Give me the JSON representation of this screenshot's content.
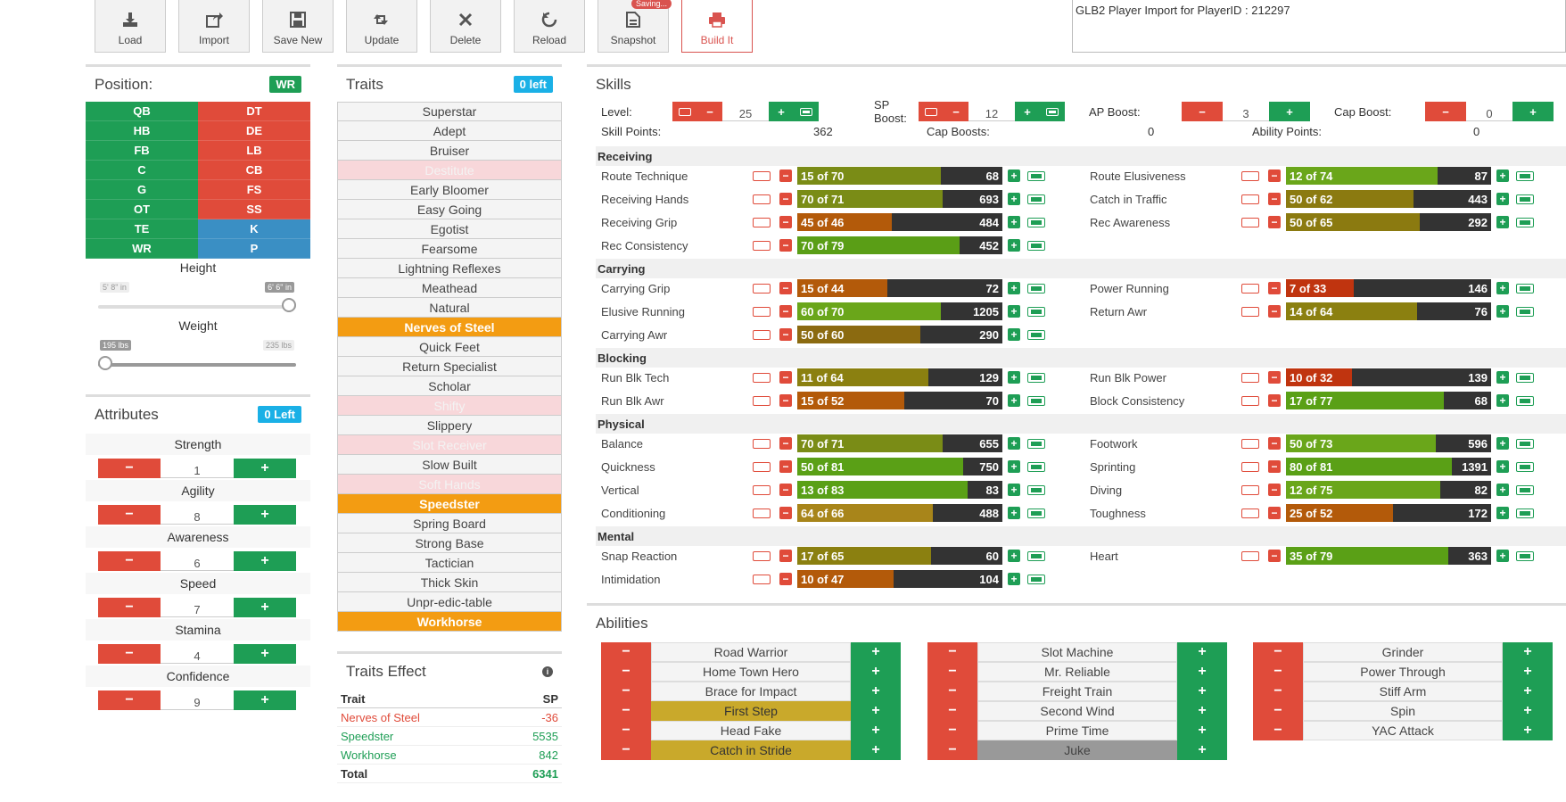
{
  "toolbar": {
    "buttons": [
      {
        "label": "Load",
        "icon": "download-icon"
      },
      {
        "label": "Import",
        "icon": "share-icon"
      },
      {
        "label": "Save New",
        "icon": "save-icon"
      },
      {
        "label": "Update",
        "icon": "retweet-icon"
      },
      {
        "label": "Delete",
        "icon": "close-icon"
      },
      {
        "label": "Reload",
        "icon": "reload-icon"
      },
      {
        "label": "Snapshot",
        "icon": "file-icon"
      },
      {
        "label": "Build It",
        "icon": "print-icon"
      }
    ],
    "saving_badge": "Saving..."
  },
  "import_text": "GLB2 Player Import for PlayerID : 212297",
  "position": {
    "title": "Position:",
    "selected": "WR",
    "items": [
      {
        "label": "QB",
        "color": "#1e9e55"
      },
      {
        "label": "DT",
        "color": "#e04b3a"
      },
      {
        "label": "HB",
        "color": "#1e9e55"
      },
      {
        "label": "DE",
        "color": "#e04b3a"
      },
      {
        "label": "FB",
        "color": "#1e9e55"
      },
      {
        "label": "LB",
        "color": "#e04b3a"
      },
      {
        "label": "C",
        "color": "#1e9e55"
      },
      {
        "label": "CB",
        "color": "#e04b3a"
      },
      {
        "label": "G",
        "color": "#1e9e55"
      },
      {
        "label": "FS",
        "color": "#e04b3a"
      },
      {
        "label": "OT",
        "color": "#1e9e55"
      },
      {
        "label": "SS",
        "color": "#e04b3a"
      },
      {
        "label": "TE",
        "color": "#1e9e55"
      },
      {
        "label": "K",
        "color": "#3a8fc4"
      },
      {
        "label": "WR",
        "color": "#1e9e55"
      },
      {
        "label": "P",
        "color": "#3a8fc4"
      }
    ]
  },
  "height": {
    "label": "Height",
    "min": "5' 8\" in",
    "max": "6' 6\" in",
    "level": 1.0
  },
  "weight": {
    "label": "Weight",
    "min": "195 lbs",
    "max": "235 lbs",
    "level": 0.0
  },
  "attributes": {
    "title": "Attributes",
    "left": "0 Left",
    "items": [
      {
        "name": "Strength",
        "value": "1"
      },
      {
        "name": "Agility",
        "value": "8"
      },
      {
        "name": "Awareness",
        "value": "6"
      },
      {
        "name": "Speed",
        "value": "7"
      },
      {
        "name": "Stamina",
        "value": "4"
      },
      {
        "name": "Confidence",
        "value": "9"
      }
    ]
  },
  "traits": {
    "title": "Traits",
    "left": "0 left",
    "items": [
      {
        "name": "Superstar",
        "state": "off"
      },
      {
        "name": "Adept",
        "state": "off"
      },
      {
        "name": "Bruiser",
        "state": "off"
      },
      {
        "name": "Destitute",
        "state": "dis"
      },
      {
        "name": "Early Bloomer",
        "state": "off"
      },
      {
        "name": "Easy Going",
        "state": "off"
      },
      {
        "name": "Egotist",
        "state": "off"
      },
      {
        "name": "Fearsome",
        "state": "off"
      },
      {
        "name": "Lightning Reflexes",
        "state": "off"
      },
      {
        "name": "Meathead",
        "state": "off"
      },
      {
        "name": "Natural",
        "state": "off"
      },
      {
        "name": "Nerves of Steel",
        "state": "on"
      },
      {
        "name": "Quick Feet",
        "state": "off"
      },
      {
        "name": "Return Specialist",
        "state": "off"
      },
      {
        "name": "Scholar",
        "state": "off"
      },
      {
        "name": "Shifty",
        "state": "dis"
      },
      {
        "name": "Slippery",
        "state": "off"
      },
      {
        "name": "Slot Receiver",
        "state": "dis"
      },
      {
        "name": "Slow Built",
        "state": "off"
      },
      {
        "name": "Soft Hands",
        "state": "dis"
      },
      {
        "name": "Speedster",
        "state": "on"
      },
      {
        "name": "Spring Board",
        "state": "off"
      },
      {
        "name": "Strong Base",
        "state": "off"
      },
      {
        "name": "Tactician",
        "state": "off"
      },
      {
        "name": "Thick Skin",
        "state": "off"
      },
      {
        "name": "Unpr-edic-table",
        "state": "off"
      },
      {
        "name": "Workhorse",
        "state": "on"
      }
    ]
  },
  "traits_effect": {
    "title": "Traits Effect",
    "col_trait": "Trait",
    "col_sp": "SP",
    "rows": [
      {
        "trait": "Nerves of Steel",
        "sp": "-36",
        "color": "#e04b3a"
      },
      {
        "trait": "Speedster",
        "sp": "5535",
        "color": "#1e9e55"
      },
      {
        "trait": "Workhorse",
        "sp": "842",
        "color": "#1e9e55"
      }
    ],
    "total_label": "Total",
    "total": "6341"
  },
  "skills": {
    "title": "Skills",
    "level_label": "Level:",
    "level": "25",
    "sp_boost_label": "SP Boost:",
    "sp_boost": "12",
    "ap_boost_label": "AP Boost:",
    "ap_boost": "3",
    "cap_boost_label": "Cap Boost:",
    "cap_boost": "0",
    "skill_points_label": "Skill Points:",
    "skill_points": "362",
    "cap_boosts_label": "Cap Boosts:",
    "cap_boosts": "0",
    "ability_points_label": "Ability Points:",
    "ability_points": "0",
    "categories": [
      {
        "name": "Receiving",
        "left": [
          {
            "name": "Route Technique",
            "label": "15 of 70",
            "val": "68",
            "pct": 70,
            "color": "#7a8c16"
          },
          {
            "name": "Receiving Hands",
            "label": "70 of 71",
            "val": "693",
            "pct": 71,
            "color": "#7a8c16"
          },
          {
            "name": "Receiving Grip",
            "label": "45 of 46",
            "val": "484",
            "pct": 46,
            "color": "#b35a0a"
          },
          {
            "name": "Rec Consistency",
            "label": "70 of 79",
            "val": "452",
            "pct": 79,
            "color": "#5a9e16"
          }
        ],
        "right": [
          {
            "name": "Route Elusiveness",
            "label": "12 of 74",
            "val": "87",
            "pct": 74,
            "color": "#6aa61a"
          },
          {
            "name": "Catch in Traffic",
            "label": "50 of 62",
            "val": "443",
            "pct": 62,
            "color": "#8b7a10"
          },
          {
            "name": "Rec Awareness",
            "label": "50 of 65",
            "val": "292",
            "pct": 65,
            "color": "#8b7a10"
          }
        ]
      },
      {
        "name": "Carrying",
        "left": [
          {
            "name": "Carrying Grip",
            "label": "15 of 44",
            "val": "72",
            "pct": 44,
            "color": "#b35a0a"
          },
          {
            "name": "Elusive Running",
            "label": "60 of 70",
            "val": "1205",
            "pct": 70,
            "color": "#6aa61a"
          },
          {
            "name": "Carrying Awr",
            "label": "50 of 60",
            "val": "290",
            "pct": 60,
            "color": "#8b6a10"
          }
        ],
        "right": [
          {
            "name": "Power Running",
            "label": "7 of 33",
            "val": "146",
            "pct": 33,
            "color": "#c0340f"
          },
          {
            "name": "Return Awr",
            "label": "14 of 64",
            "val": "76",
            "pct": 64,
            "color": "#8b8010"
          }
        ]
      },
      {
        "name": "Blocking",
        "left": [
          {
            "name": "Run Blk Tech",
            "label": "11 of 64",
            "val": "129",
            "pct": 64,
            "color": "#8b8010"
          },
          {
            "name": "Run Blk Awr",
            "label": "15 of 52",
            "val": "70",
            "pct": 52,
            "color": "#b35a0a"
          }
        ],
        "right": [
          {
            "name": "Run Blk Power",
            "label": "10 of 32",
            "val": "139",
            "pct": 32,
            "color": "#c0340f"
          },
          {
            "name": "Block Consistency",
            "label": "17 of 77",
            "val": "68",
            "pct": 77,
            "color": "#5aa016"
          }
        ]
      },
      {
        "name": "Physical",
        "left": [
          {
            "name": "Balance",
            "label": "70 of 71",
            "val": "655",
            "pct": 71,
            "color": "#7a8c16"
          },
          {
            "name": "Quickness",
            "label": "50 of 81",
            "val": "750",
            "pct": 81,
            "color": "#5aa016"
          },
          {
            "name": "Vertical",
            "label": "13 of 83",
            "val": "83",
            "pct": 83,
            "color": "#5aa016"
          },
          {
            "name": "Conditioning",
            "label": "64 of 66",
            "val": "488",
            "pct": 66,
            "color": "#a8851a"
          }
        ],
        "right": [
          {
            "name": "Footwork",
            "label": "50 of 73",
            "val": "596",
            "pct": 73,
            "color": "#6aa61a"
          },
          {
            "name": "Sprinting",
            "label": "80 of 81",
            "val": "1391",
            "pct": 81,
            "color": "#5aa016"
          },
          {
            "name": "Diving",
            "label": "12 of 75",
            "val": "82",
            "pct": 75,
            "color": "#6aa61a"
          },
          {
            "name": "Toughness",
            "label": "25 of 52",
            "val": "172",
            "pct": 52,
            "color": "#b35a0a"
          }
        ]
      },
      {
        "name": "Mental",
        "left": [
          {
            "name": "Snap Reaction",
            "label": "17 of 65",
            "val": "60",
            "pct": 65,
            "color": "#8b8010"
          },
          {
            "name": "Intimidation",
            "label": "10 of 47",
            "val": "104",
            "pct": 47,
            "color": "#b35a0a"
          }
        ],
        "right": [
          {
            "name": "Heart",
            "label": "35 of 79",
            "val": "363",
            "pct": 79,
            "color": "#5aa016"
          }
        ]
      }
    ]
  },
  "abilities": {
    "title": "Abilities",
    "columns": [
      [
        {
          "name": "Road Warrior",
          "state": ""
        },
        {
          "name": "Home Town Hero",
          "state": ""
        },
        {
          "name": "Brace for Impact",
          "state": ""
        },
        {
          "name": "First Step",
          "state": "gold"
        },
        {
          "name": "Head Fake",
          "state": ""
        },
        {
          "name": "Catch in Stride",
          "state": "gold"
        }
      ],
      [
        {
          "name": "Slot Machine",
          "state": ""
        },
        {
          "name": "Mr. Reliable",
          "state": ""
        },
        {
          "name": "Freight Train",
          "state": ""
        },
        {
          "name": "Second Wind",
          "state": ""
        },
        {
          "name": "Prime Time",
          "state": ""
        },
        {
          "name": "Juke",
          "state": "gray"
        }
      ],
      [
        {
          "name": "Grinder",
          "state": ""
        },
        {
          "name": "Power Through",
          "state": ""
        },
        {
          "name": "Stiff Arm",
          "state": ""
        },
        {
          "name": "Spin",
          "state": ""
        },
        {
          "name": "YAC Attack",
          "state": ""
        }
      ]
    ]
  }
}
